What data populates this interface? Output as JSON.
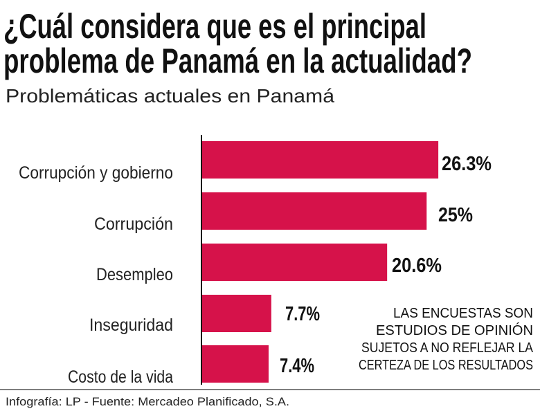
{
  "title_line1": "¿Cuál considera que es el principal",
  "title_line2": "problema de Panamá en la actualidad?",
  "subtitle": "Problemáticas actuales en Panamá",
  "note": [
    "LAS ENCUESTAS SON",
    "ESTUDIOS DE OPINIÓN",
    "SUJETOS A NO REFLEJAR LA",
    "CERTEZA DE LOS RESULTADOS"
  ],
  "footer": "Infografía: LP - Fuente: Mercadeo Planificado, S.A.",
  "colors": {
    "bar": "#d6124a",
    "text": "#111111"
  },
  "chart_data": {
    "type": "bar",
    "orientation": "horizontal",
    "title": "¿Cuál considera que es el principal problema de Panamá en la actualidad?",
    "subtitle": "Problemáticas actuales en Panamá",
    "categories": [
      "Corrupción y gobierno",
      "Corrupción",
      "Desempleo",
      "Inseguridad",
      "Costo de la vida"
    ],
    "values": [
      26.3,
      25,
      20.6,
      7.7,
      7.4
    ],
    "value_labels": [
      "26.3%",
      "25%",
      "20.6%",
      "7.7%",
      "7.4%"
    ],
    "unit": "%",
    "grid": false,
    "legend": "none"
  }
}
